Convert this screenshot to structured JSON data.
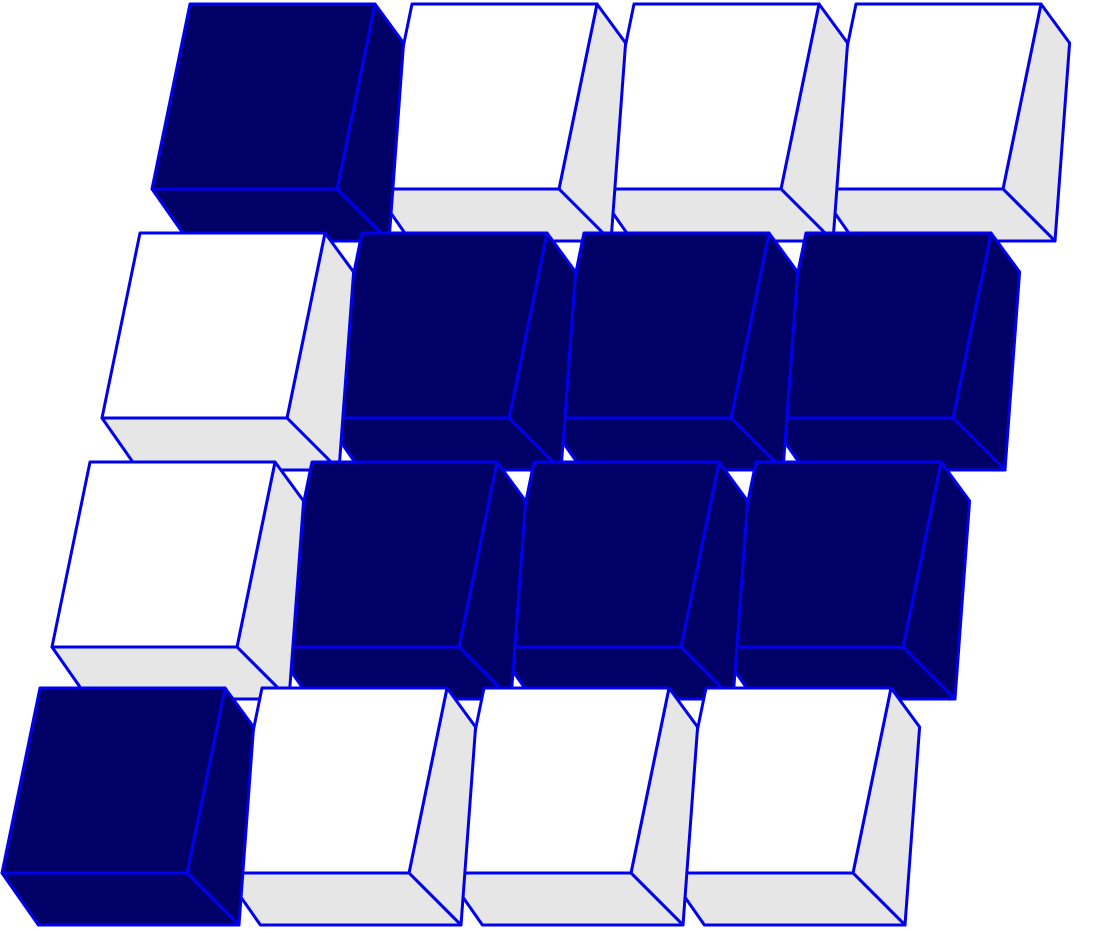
{
  "puzzle": {
    "rows": 4,
    "cols": 4,
    "grid": [
      [
        1,
        0,
        0,
        0
      ],
      [
        0,
        1,
        1,
        1
      ],
      [
        0,
        1,
        1,
        1
      ],
      [
        1,
        0,
        0,
        0
      ]
    ]
  },
  "colors": {
    "filled_face": "#000066",
    "filled_side": "#000066",
    "empty_face": "#ffffff",
    "empty_side": "#e6e6e6",
    "outline": "#0000ee"
  }
}
